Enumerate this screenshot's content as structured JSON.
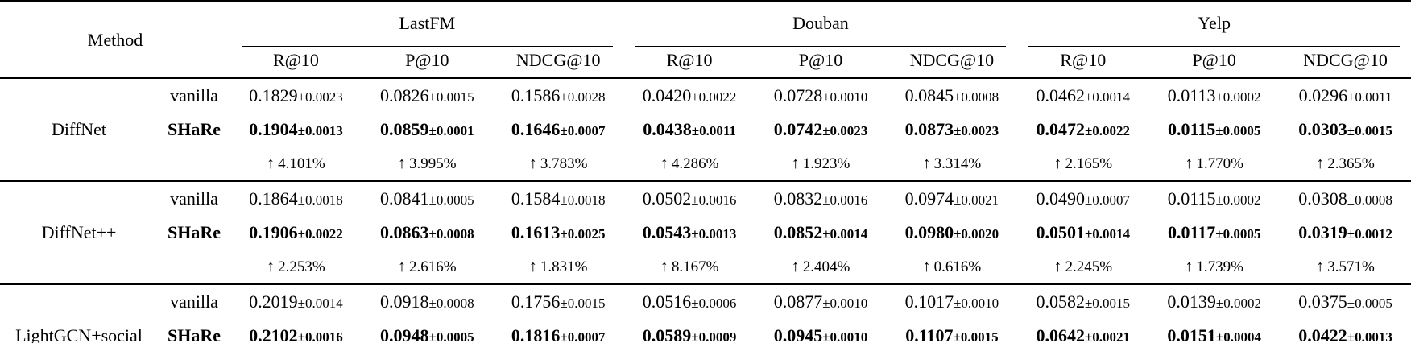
{
  "table": {
    "method_header": "Method",
    "datasets": [
      "LastFM",
      "Douban",
      "Yelp"
    ],
    "metrics": [
      "R@10",
      "P@10",
      "NDCG@10"
    ],
    "up_arrow": "↑",
    "text_color": "#000000",
    "background_color": "#ffffff",
    "blocks": [
      {
        "method": "DiffNet",
        "variants": [
          {
            "label": "vanilla",
            "bold": false,
            "values": [
              "0.1829±0.0023",
              "0.0826±0.0015",
              "0.1586±0.0028",
              "0.0420±0.0022",
              "0.0728±0.0010",
              "0.0845±0.0008",
              "0.0462±0.0014",
              "0.0113±0.0002",
              "0.0296±0.0011"
            ]
          },
          {
            "label": "SHaRe",
            "bold": true,
            "values": [
              "0.1904±0.0013",
              "0.0859±0.0001",
              "0.1646±0.0007",
              "0.0438±0.0011",
              "0.0742±0.0023",
              "0.0873±0.0023",
              "0.0472±0.0022",
              "0.0115±0.0005",
              "0.0303±0.0015"
            ]
          }
        ],
        "improvements": [
          "4.101%",
          "3.995%",
          "3.783%",
          "4.286%",
          "1.923%",
          "3.314%",
          "2.165%",
          "1.770%",
          "2.365%"
        ]
      },
      {
        "method": "DiffNet++",
        "variants": [
          {
            "label": "vanilla",
            "bold": false,
            "values": [
              "0.1864±0.0018",
              "0.0841±0.0005",
              "0.1584±0.0018",
              "0.0502±0.0016",
              "0.0832±0.0016",
              "0.0974±0.0021",
              "0.0490±0.0007",
              "0.0115±0.0002",
              "0.0308±0.0008"
            ]
          },
          {
            "label": "SHaRe",
            "bold": true,
            "values": [
              "0.1906±0.0022",
              "0.0863±0.0008",
              "0.1613±0.0025",
              "0.0543±0.0013",
              "0.0852±0.0014",
              "0.0980±0.0020",
              "0.0501±0.0014",
              "0.0117±0.0005",
              "0.0319±0.0012"
            ]
          }
        ],
        "improvements": [
          "2.253%",
          "2.616%",
          "1.831%",
          "8.167%",
          "2.404%",
          "0.616%",
          "2.245%",
          "1.739%",
          "3.571%"
        ]
      },
      {
        "method": "LightGCN+social",
        "variants": [
          {
            "label": "vanilla",
            "bold": false,
            "values": [
              "0.2019±0.0014",
              "0.0918±0.0008",
              "0.1756±0.0015",
              "0.0516±0.0006",
              "0.0877±0.0010",
              "0.1017±0.0010",
              "0.0582±0.0015",
              "0.0139±0.0002",
              "0.0375±0.0005"
            ]
          },
          {
            "label": "SHaRe",
            "bold": true,
            "values": [
              "0.2102±0.0016",
              "0.0948±0.0005",
              "0.1816±0.0007",
              "0.0589±0.0009",
              "0.0945±0.0010",
              "0.1107±0.0015",
              "0.0642±0.0021",
              "0.0151±0.0004",
              "0.0422±0.0013"
            ]
          }
        ],
        "improvements": []
      }
    ]
  }
}
